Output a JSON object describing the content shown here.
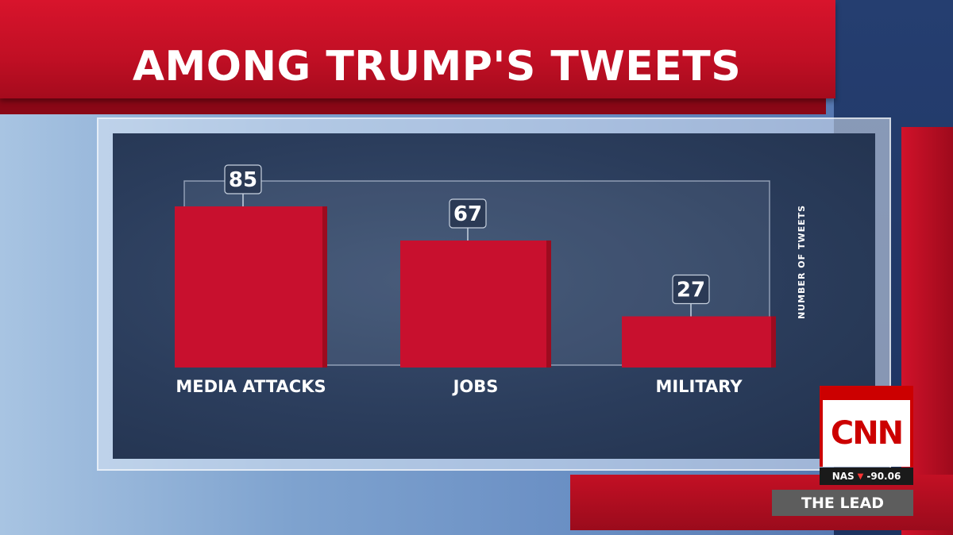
{
  "header": {
    "title": "AMONG TRUMP'S TWEETS"
  },
  "chart_data": {
    "type": "bar",
    "title": "AMONG TRUMP'S TWEETS",
    "categories": [
      "MEDIA ATTACKS",
      "JOBS",
      "MILITARY"
    ],
    "values": [
      85,
      67,
      27
    ],
    "value_labels": [
      "85",
      "67",
      "27"
    ],
    "xlabel": "",
    "ylabel": "NUMBER OF TWEETS",
    "ylim": [
      0,
      85
    ],
    "grid": false,
    "legend": "none",
    "colors": {
      "bar": "#c8102e",
      "label_bg": "#2b3a55"
    }
  },
  "branding": {
    "network_logo": "CNN",
    "ticker_symbol": "NAS",
    "ticker_arrow_icon": "▼",
    "ticker_value": "-90.06",
    "show_name": "THE LEAD"
  }
}
